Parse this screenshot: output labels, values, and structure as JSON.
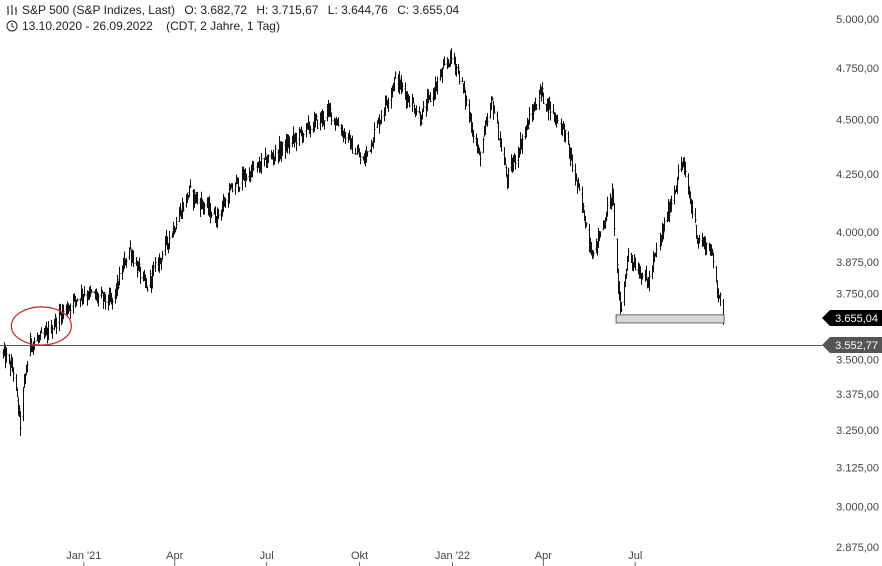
{
  "header": {
    "title": "S&P 500 (S&P Indizes, Last)",
    "open": "O: 3.682,72",
    "high": "H: 3.715,67",
    "low": "L: 3.644,76",
    "close": "C: 3.655,04",
    "date_range": "13.10.2020 - 26.09.2022",
    "settings": "(CDT, 2 Jahre, 1 Tag)"
  },
  "chart_data": {
    "type": "bar",
    "style": "ohlc",
    "x_tick_labels": [
      "Jan '21",
      "Apr",
      "Jul",
      "Okt",
      "Jan '22",
      "Apr",
      "Jul"
    ],
    "y_tick_labels": [
      "5.000,00",
      "4.750,00",
      "4.500,00",
      "4.250,00",
      "4.000,00",
      "3.875,00",
      "3.750,00",
      "3.500,00",
      "3.375,00",
      "3.250,00",
      "3.125,00",
      "3.000,00",
      "2.875,00"
    ],
    "y_tick_values": [
      5000,
      4750,
      4500,
      4250,
      4000,
      3875,
      3750,
      3500,
      3375,
      3250,
      3125,
      3000,
      2875
    ],
    "ylim": [
      2875,
      5000
    ],
    "scale": "log",
    "last_price_label": "3.655,04",
    "last_price": 3655.04,
    "reference_line_label": "3.552,77",
    "reference_line": 3552.77,
    "support_zone": [
      3636,
      3667
    ],
    "highlight_ellipse_range": [
      3560,
      3690
    ],
    "series": [
      {
        "path_dates": [
          "2020-10-13",
          "2020-10-23",
          "2020-10-30",
          "2020-11-04",
          "2020-11-09",
          "2020-11-23",
          "2020-12-08",
          "2020-12-31",
          "2021-01-29",
          "2021-02-15",
          "2021-03-04",
          "2021-04-15",
          "2021-05-12",
          "2021-05-31",
          "2021-07-15",
          "2021-09-02",
          "2021-10-04",
          "2021-11-05",
          "2021-12-01",
          "2021-12-29",
          "2022-01-03",
          "2022-01-27",
          "2022-02-09",
          "2022-02-24",
          "2022-03-29",
          "2022-04-20",
          "2022-05-20",
          "2022-06-08",
          "2022-06-16",
          "2022-06-24",
          "2022-07-14",
          "2022-08-16",
          "2022-09-01",
          "2022-09-13",
          "2022-09-26"
        ],
        "path_closes": [
          3520,
          3460,
          3270,
          3440,
          3560,
          3580,
          3670,
          3756,
          3714,
          3934,
          3768,
          4170,
          4063,
          4204,
          4361,
          4536,
          4300,
          4697,
          4513,
          4793,
          4796,
          4326,
          4587,
          4225,
          4631,
          4459,
          3901,
          4160,
          3666,
          3911,
          3790,
          4305,
          3967,
          3932,
          3655
        ]
      }
    ]
  },
  "colors": {
    "bars": "#111111",
    "price_tag_bg": "#000000",
    "ref_tag_bg": "#555555",
    "ellipse": "#cc2222",
    "zone_fill": "#d8d8d8",
    "zone_stroke": "#666666",
    "ref_line": "#555555"
  },
  "icons": {
    "chart_type": "ohlc-bars-icon",
    "time": "clock-icon"
  }
}
